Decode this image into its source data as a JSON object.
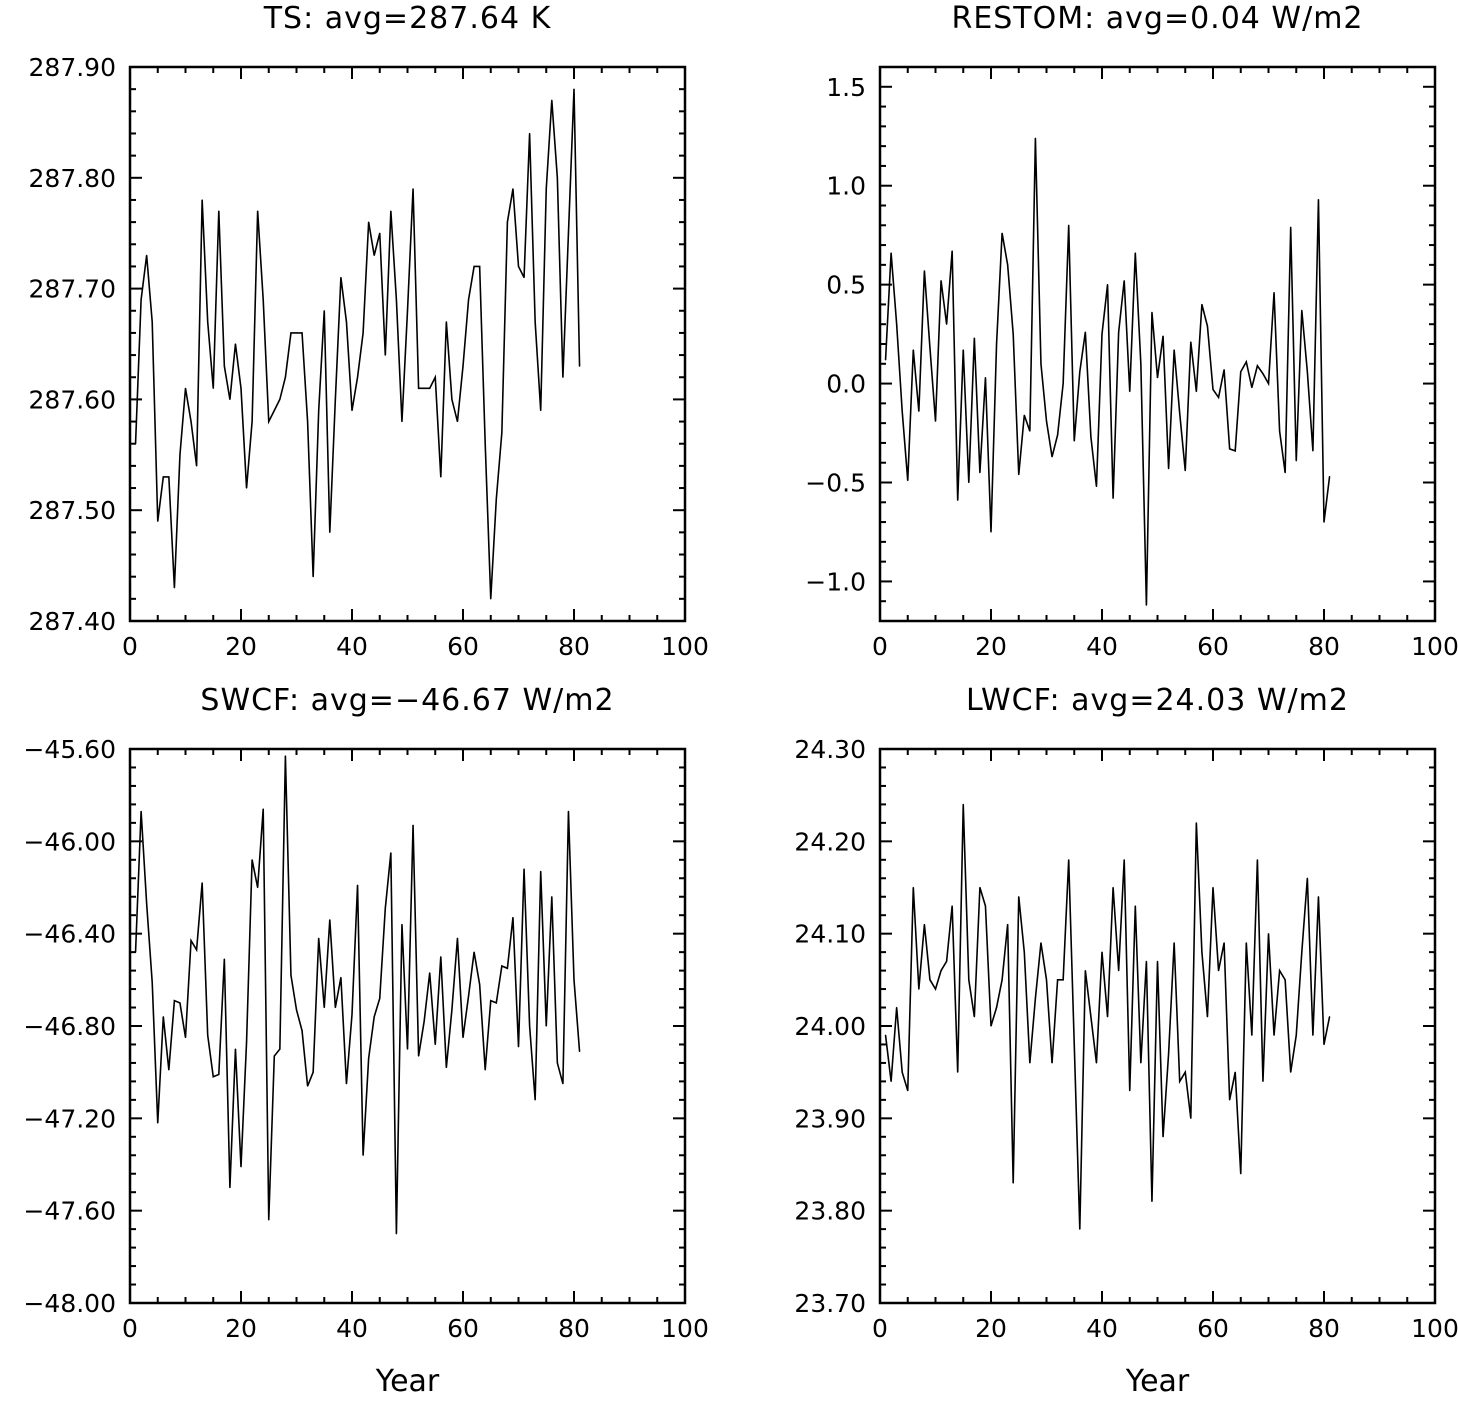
{
  "chart_data": [
    {
      "type": "line",
      "title": "TS: avg=287.64 K",
      "xlabel": "",
      "ylabel": "",
      "xlim": [
        0,
        100
      ],
      "ylim": [
        287.4,
        287.9
      ],
      "x_ticks": [
        0,
        20,
        40,
        60,
        80,
        100
      ],
      "y_ticks": [
        287.4,
        287.5,
        287.6,
        287.7,
        287.8,
        287.9
      ],
      "x_tick_labels": [
        "0",
        "20",
        "40",
        "60",
        "80",
        "100"
      ],
      "y_tick_labels": [
        "287.40",
        "287.50",
        "287.60",
        "287.70",
        "287.80",
        "287.90"
      ],
      "grid": false,
      "series": [
        {
          "x": [
            1,
            2,
            3,
            4,
            5,
            6,
            7,
            8,
            9,
            10,
            11,
            12,
            13,
            14,
            15,
            16,
            17,
            18,
            19,
            20,
            21,
            22,
            23,
            24,
            25,
            26,
            27,
            28,
            29,
            30,
            31,
            32,
            33,
            34,
            35,
            36,
            37,
            38,
            39,
            40,
            41,
            42,
            43,
            44,
            45,
            46,
            47,
            48,
            49,
            50,
            51,
            52,
            53,
            54,
            55,
            56,
            57,
            58,
            59,
            60,
            61,
            62,
            63,
            64,
            65,
            66,
            67,
            68,
            69,
            70,
            71,
            72,
            73,
            74,
            75,
            76,
            77,
            78,
            79,
            80,
            81
          ],
          "values": [
            287.56,
            287.69,
            287.73,
            287.67,
            287.49,
            287.53,
            287.53,
            287.43,
            287.55,
            287.61,
            287.58,
            287.54,
            287.78,
            287.67,
            287.61,
            287.77,
            287.63,
            287.6,
            287.65,
            287.61,
            287.52,
            287.58,
            287.77,
            287.69,
            287.58,
            287.59,
            287.6,
            287.62,
            287.66,
            287.66,
            287.66,
            287.58,
            287.44,
            287.59,
            287.68,
            287.48,
            287.6,
            287.71,
            287.67,
            287.59,
            287.62,
            287.66,
            287.76,
            287.73,
            287.75,
            287.64,
            287.77,
            287.69,
            287.58,
            287.68,
            287.79,
            287.61,
            287.61,
            287.61,
            287.62,
            287.53,
            287.67,
            287.6,
            287.58,
            287.63,
            287.69,
            287.72,
            287.72,
            287.56,
            287.42,
            287.51,
            287.57,
            287.76,
            287.79,
            287.72,
            287.71,
            287.84,
            287.67,
            287.59,
            287.79,
            287.87,
            287.8,
            287.62,
            287.75,
            287.88,
            287.63
          ]
        }
      ]
    },
    {
      "type": "line",
      "title": "RESTOM: avg=0.04 W/m2",
      "xlabel": "",
      "ylabel": "",
      "xlim": [
        0,
        100
      ],
      "ylim": [
        -1.2,
        1.6
      ],
      "x_ticks": [
        0,
        20,
        40,
        60,
        80,
        100
      ],
      "y_ticks": [
        -1.0,
        -0.5,
        0.0,
        0.5,
        1.0,
        1.5
      ],
      "x_tick_labels": [
        "0",
        "20",
        "40",
        "60",
        "80",
        "100"
      ],
      "y_tick_labels": [
        "−1.0",
        "−0.5",
        "0.0",
        "0.5",
        "1.0",
        "1.5"
      ],
      "grid": false,
      "series": [
        {
          "x": [
            1,
            2,
            3,
            4,
            5,
            6,
            7,
            8,
            9,
            10,
            11,
            12,
            13,
            14,
            15,
            16,
            17,
            18,
            19,
            20,
            21,
            22,
            23,
            24,
            25,
            26,
            27,
            28,
            29,
            30,
            31,
            32,
            33,
            34,
            35,
            36,
            37,
            38,
            39,
            40,
            41,
            42,
            43,
            44,
            45,
            46,
            47,
            48,
            49,
            50,
            51,
            52,
            53,
            54,
            55,
            56,
            57,
            58,
            59,
            60,
            61,
            62,
            63,
            64,
            65,
            66,
            67,
            68,
            69,
            70,
            71,
            72,
            73,
            74,
            75,
            76,
            77,
            78,
            79,
            80,
            81
          ],
          "values": [
            0.12,
            0.66,
            0.3,
            -0.14,
            -0.49,
            0.17,
            -0.14,
            0.57,
            0.18,
            -0.19,
            0.52,
            0.3,
            0.67,
            -0.59,
            0.17,
            -0.5,
            0.23,
            -0.45,
            0.03,
            -0.75,
            0.2,
            0.76,
            0.6,
            0.25,
            -0.46,
            -0.16,
            -0.24,
            1.24,
            0.1,
            -0.19,
            -0.37,
            -0.26,
            0.0,
            0.8,
            -0.29,
            0.06,
            0.26,
            -0.27,
            -0.52,
            0.25,
            0.5,
            -0.58,
            0.26,
            0.52,
            -0.04,
            0.66,
            0.1,
            -1.12,
            0.36,
            0.03,
            0.24,
            -0.43,
            0.17,
            -0.15,
            -0.44,
            0.21,
            -0.04,
            0.4,
            0.29,
            -0.03,
            -0.07,
            0.07,
            -0.33,
            -0.34,
            0.06,
            0.11,
            -0.02,
            0.09,
            0.05,
            0.0,
            0.46,
            -0.24,
            -0.45,
            0.79,
            -0.39,
            0.37,
            0.06,
            -0.34,
            0.93,
            -0.7,
            -0.47
          ]
        }
      ]
    },
    {
      "type": "line",
      "title": "SWCF: avg=−46.67 W/m2",
      "xlabel": "Year",
      "ylabel": "",
      "xlim": [
        0,
        100
      ],
      "ylim": [
        -48.0,
        -45.6
      ],
      "x_ticks": [
        0,
        20,
        40,
        60,
        80,
        100
      ],
      "y_ticks": [
        -48.0,
        -47.6,
        -47.2,
        -46.8,
        -46.4,
        -46.0,
        -45.6
      ],
      "x_tick_labels": [
        "0",
        "20",
        "40",
        "60",
        "80",
        "100"
      ],
      "y_tick_labels": [
        "−48.00",
        "−47.60",
        "−47.20",
        "−46.80",
        "−46.40",
        "−46.00",
        "−45.60"
      ],
      "grid": false,
      "series": [
        {
          "x": [
            1,
            2,
            3,
            4,
            5,
            6,
            7,
            8,
            9,
            10,
            11,
            12,
            13,
            14,
            15,
            16,
            17,
            18,
            19,
            20,
            21,
            22,
            23,
            24,
            25,
            26,
            27,
            28,
            29,
            30,
            31,
            32,
            33,
            34,
            35,
            36,
            37,
            38,
            39,
            40,
            41,
            42,
            43,
            44,
            45,
            46,
            47,
            48,
            49,
            50,
            51,
            52,
            53,
            54,
            55,
            56,
            57,
            58,
            59,
            60,
            61,
            62,
            63,
            64,
            65,
            66,
            67,
            68,
            69,
            70,
            71,
            72,
            73,
            74,
            75,
            76,
            77,
            78,
            79,
            80,
            81
          ],
          "values": [
            -46.48,
            -45.87,
            -46.27,
            -46.61,
            -47.22,
            -46.76,
            -46.99,
            -46.69,
            -46.7,
            -46.85,
            -46.43,
            -46.47,
            -46.18,
            -46.84,
            -47.02,
            -47.01,
            -46.51,
            -47.5,
            -46.9,
            -47.41,
            -46.87,
            -46.08,
            -46.2,
            -45.86,
            -47.64,
            -46.93,
            -46.9,
            -45.63,
            -46.58,
            -46.73,
            -46.82,
            -47.06,
            -47.0,
            -46.42,
            -46.72,
            -46.34,
            -46.72,
            -46.59,
            -47.05,
            -46.75,
            -46.19,
            -47.36,
            -46.94,
            -46.76,
            -46.68,
            -46.29,
            -46.05,
            -47.7,
            -46.36,
            -46.9,
            -45.93,
            -46.93,
            -46.78,
            -46.57,
            -46.88,
            -46.5,
            -46.98,
            -46.73,
            -46.42,
            -46.85,
            -46.67,
            -46.48,
            -46.62,
            -46.99,
            -46.69,
            -46.7,
            -46.54,
            -46.55,
            -46.33,
            -46.89,
            -46.12,
            -46.8,
            -47.12,
            -46.13,
            -46.8,
            -46.24,
            -46.96,
            -47.05,
            -45.87,
            -46.6,
            -46.91
          ]
        }
      ]
    },
    {
      "type": "line",
      "title": "LWCF: avg=24.03 W/m2",
      "xlabel": "Year",
      "ylabel": "",
      "xlim": [
        0,
        100
      ],
      "ylim": [
        23.7,
        24.3
      ],
      "x_ticks": [
        0,
        20,
        40,
        60,
        80,
        100
      ],
      "y_ticks": [
        23.7,
        23.8,
        23.9,
        24.0,
        24.1,
        24.2,
        24.3
      ],
      "x_tick_labels": [
        "0",
        "20",
        "40",
        "60",
        "80",
        "100"
      ],
      "y_tick_labels": [
        "23.70",
        "23.80",
        "23.90",
        "24.00",
        "24.10",
        "24.20",
        "24.30"
      ],
      "grid": false,
      "series": [
        {
          "x": [
            1,
            2,
            3,
            4,
            5,
            6,
            7,
            8,
            9,
            10,
            11,
            12,
            13,
            14,
            15,
            16,
            17,
            18,
            19,
            20,
            21,
            22,
            23,
            24,
            25,
            26,
            27,
            28,
            29,
            30,
            31,
            32,
            33,
            34,
            35,
            36,
            37,
            38,
            39,
            40,
            41,
            42,
            43,
            44,
            45,
            46,
            47,
            48,
            49,
            50,
            51,
            52,
            53,
            54,
            55,
            56,
            57,
            58,
            59,
            60,
            61,
            62,
            63,
            64,
            65,
            66,
            67,
            68,
            69,
            70,
            71,
            72,
            73,
            74,
            75,
            76,
            77,
            78,
            79,
            80,
            81
          ],
          "values": [
            23.99,
            23.94,
            24.02,
            23.95,
            23.93,
            24.15,
            24.04,
            24.11,
            24.05,
            24.04,
            24.06,
            24.07,
            24.13,
            23.95,
            24.24,
            24.05,
            24.01,
            24.15,
            24.13,
            24.0,
            24.02,
            24.05,
            24.11,
            23.83,
            24.14,
            24.08,
            23.96,
            24.03,
            24.09,
            24.05,
            23.96,
            24.05,
            24.05,
            24.18,
            23.98,
            23.78,
            24.06,
            24.01,
            23.96,
            24.08,
            24.01,
            24.15,
            24.06,
            24.18,
            23.93,
            24.13,
            23.96,
            24.07,
            23.81,
            24.07,
            23.88,
            23.97,
            24.09,
            23.94,
            23.95,
            23.9,
            24.22,
            24.08,
            24.01,
            24.15,
            24.06,
            24.09,
            23.92,
            23.95,
            23.84,
            24.09,
            23.99,
            24.18,
            23.94,
            24.1,
            23.99,
            24.06,
            24.05,
            23.95,
            23.99,
            24.08,
            24.16,
            23.99,
            24.14,
            23.98,
            24.01
          ]
        }
      ]
    }
  ]
}
